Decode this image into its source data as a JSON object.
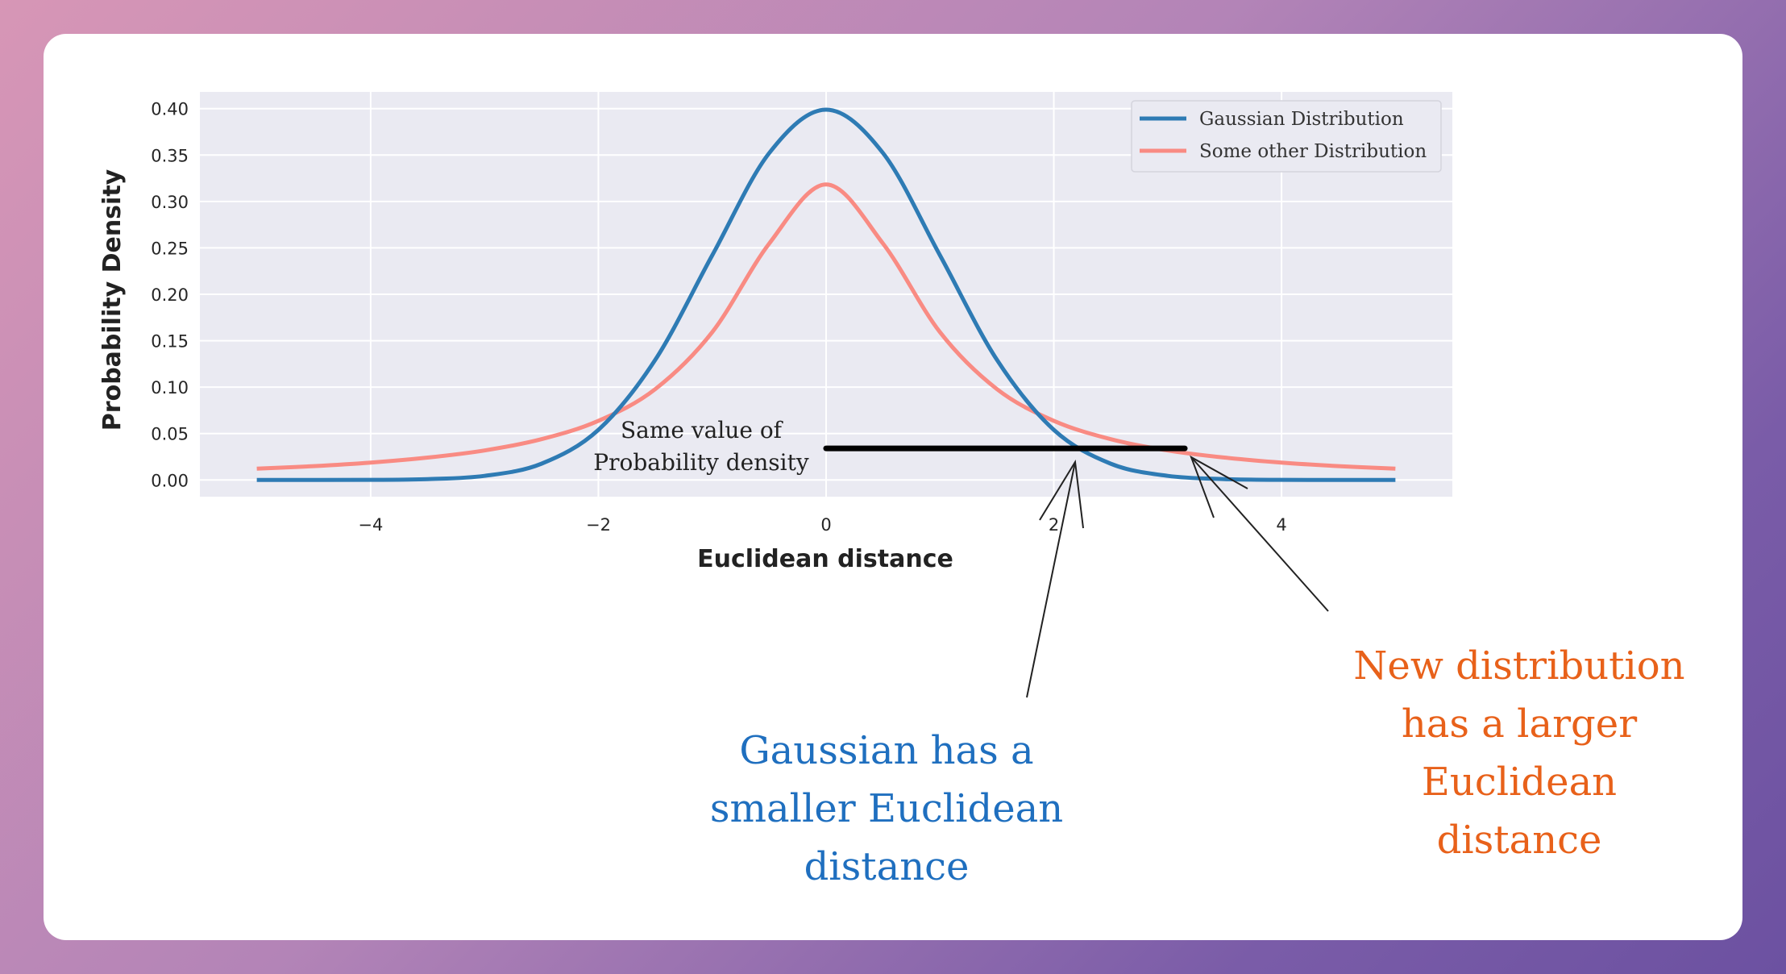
{
  "chart_data": {
    "type": "line",
    "xlabel": "Euclidean distance",
    "ylabel": "Probability Density",
    "xlim": [
      -5.5,
      5.5
    ],
    "ylim": [
      -0.018,
      0.418
    ],
    "x_ticks": [
      -4,
      -2,
      0,
      2,
      4
    ],
    "x_tick_labels": [
      "−4",
      "−2",
      "0",
      "2",
      "4"
    ],
    "y_ticks": [
      0.0,
      0.05,
      0.1,
      0.15,
      0.2,
      0.25,
      0.3,
      0.35,
      0.4
    ],
    "y_tick_labels": [
      "0.00",
      "0.05",
      "0.10",
      "0.15",
      "0.20",
      "0.25",
      "0.30",
      "0.35",
      "0.40"
    ],
    "grid": true,
    "legend_position": "top-right",
    "x": [
      -5,
      -4.5,
      -4,
      -3.5,
      -3,
      -2.5,
      -2,
      -1.5,
      -1,
      -0.5,
      0,
      0.5,
      1,
      1.5,
      2,
      2.5,
      3,
      3.5,
      4,
      4.5,
      5
    ],
    "series": [
      {
        "name": "Gaussian Distribution",
        "color": "#2e7bb4",
        "values": [
          0.0,
          0.0,
          0.0001,
          0.0009,
          0.0044,
          0.0175,
          0.054,
          0.1295,
          0.242,
          0.3521,
          0.3989,
          0.3521,
          0.242,
          0.1295,
          0.054,
          0.0175,
          0.0044,
          0.0009,
          0.0001,
          0.0,
          0.0
        ]
      },
      {
        "name": "Some other Distribution",
        "color": "#f98b83",
        "values": [
          0.0122,
          0.0149,
          0.0187,
          0.0241,
          0.0318,
          0.0439,
          0.0637,
          0.0979,
          0.1592,
          0.2546,
          0.3183,
          0.2546,
          0.1592,
          0.0979,
          0.0637,
          0.0439,
          0.0318,
          0.0241,
          0.0187,
          0.0149,
          0.0122
        ]
      }
    ],
    "annotations": {
      "reference_line": {
        "x_start": 0,
        "x_end": 3.15,
        "y": 0.034,
        "color": "#000000"
      },
      "note_line1": "Same value of",
      "note_line2": "Probability density",
      "gaussian_callout": [
        "Gaussian has a",
        "smaller Euclidean",
        "distance"
      ],
      "gaussian_callout_color": "#1f6fbf",
      "other_callout": [
        "New distribution",
        "has a larger",
        "Euclidean",
        "distance"
      ],
      "other_callout_color": "#e8611a"
    }
  }
}
